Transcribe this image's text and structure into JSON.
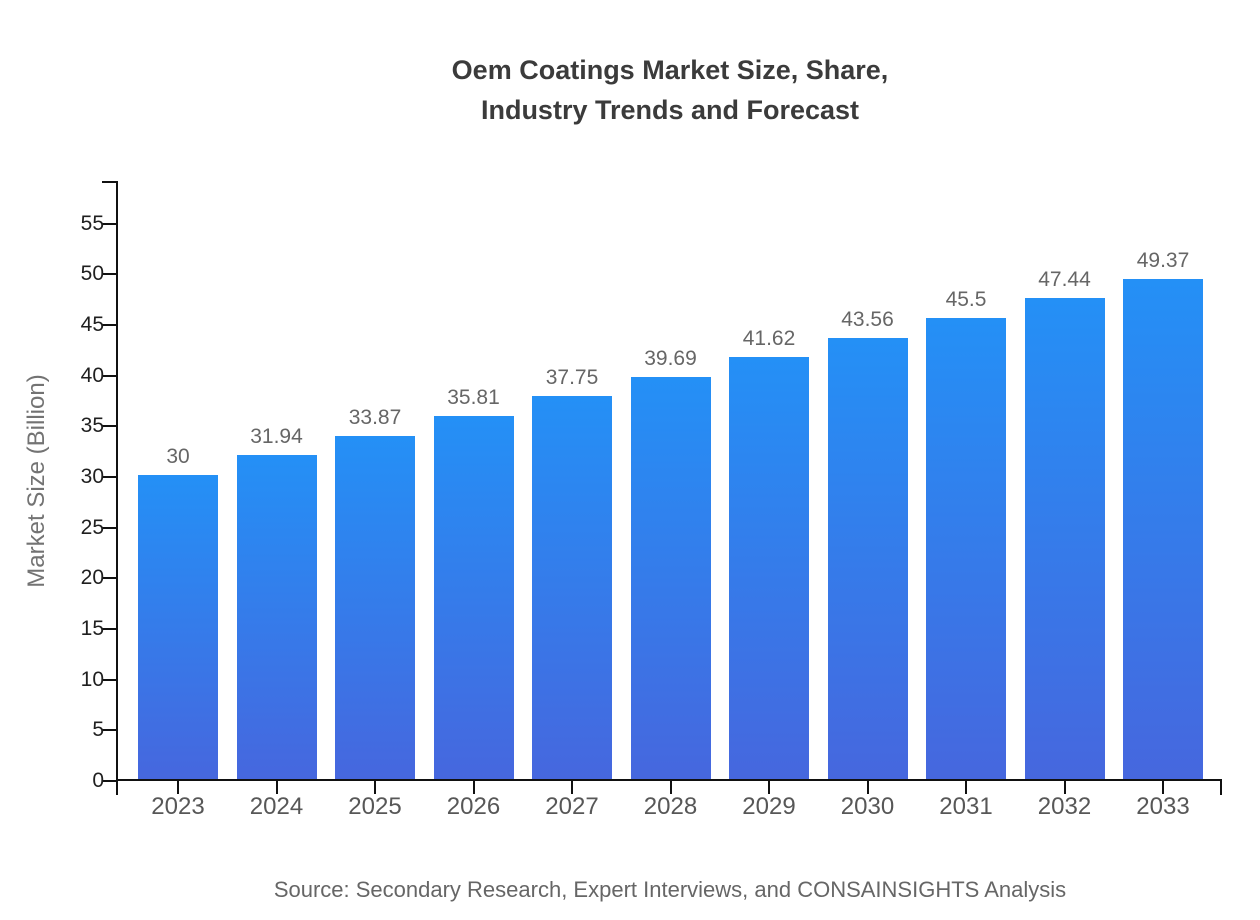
{
  "header": {
    "title_lines": [
      "Oem Coatings Market Size, Share,",
      "Industry Trends and Forecast"
    ]
  },
  "footer": {
    "source": "Source: Secondary Research, Expert Interviews, and CONSAINSIGHTS Analysis"
  },
  "chart_data": {
    "type": "bar",
    "title": "Oem Coatings Market Size, Share, Industry Trends and Forecast",
    "categories": [
      "2023",
      "2024",
      "2025",
      "2026",
      "2027",
      "2028",
      "2029",
      "2030",
      "2031",
      "2032",
      "2033"
    ],
    "values": [
      30,
      31.94,
      33.87,
      35.81,
      37.75,
      39.69,
      41.62,
      43.56,
      45.5,
      47.44,
      49.37
    ],
    "value_labels": [
      "30",
      "31.94",
      "33.87",
      "35.81",
      "37.75",
      "39.69",
      "41.62",
      "43.56",
      "45.5",
      "47.44",
      "49.37"
    ],
    "xlabel": "",
    "ylabel": "Market Size (Billion)",
    "ylim": [
      0,
      59.2
    ],
    "yticks": [
      0,
      5,
      10,
      15,
      20,
      25,
      30,
      35,
      40,
      45,
      50,
      55
    ],
    "grid": false,
    "legend": false,
    "colors": {
      "bar_gradient_top": "#2490F6",
      "bar_gradient_bottom": "#4667DE",
      "axis": "#111111",
      "y_tick_label": "#1f1f1f",
      "x_tick_label": "#575757",
      "value_label": "#666666",
      "axis_title": "#737373",
      "title": "#3b3b3b",
      "source": "#666666",
      "background": "#ffffff"
    }
  }
}
